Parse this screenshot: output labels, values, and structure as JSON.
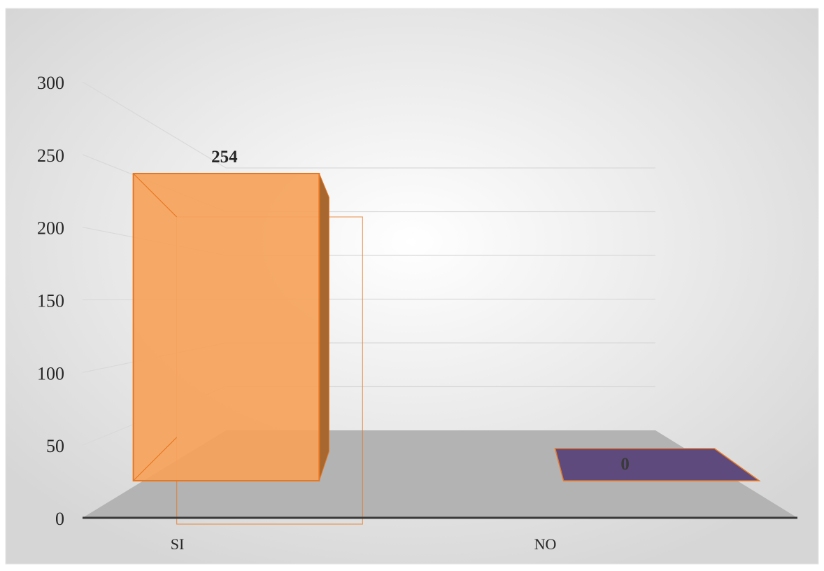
{
  "chart_data": {
    "type": "bar",
    "categories": [
      "SI",
      "NO"
    ],
    "values": [
      254,
      0
    ],
    "data_labels": [
      "254",
      "0"
    ],
    "ylim": [
      0,
      300
    ],
    "yticks": [
      0,
      50,
      100,
      150,
      200,
      250,
      300
    ],
    "ytick_labels": [
      "0",
      "50",
      "100",
      "150",
      "200",
      "250",
      "300"
    ],
    "title": "",
    "xlabel": "",
    "ylabel": "",
    "grid": true,
    "legend": "none",
    "style": "3d-column",
    "colors": {
      "bars": [
        "#F6A35B",
        "#5E4A7C"
      ],
      "bar_edge": "#E87722",
      "floor": "#B3B3B3",
      "axis": "#3A3A3A",
      "gridline": "#D9D9D9",
      "background_center": "#FFFFFF",
      "background_edge": "#D6D6D6",
      "text": "#262626"
    }
  }
}
